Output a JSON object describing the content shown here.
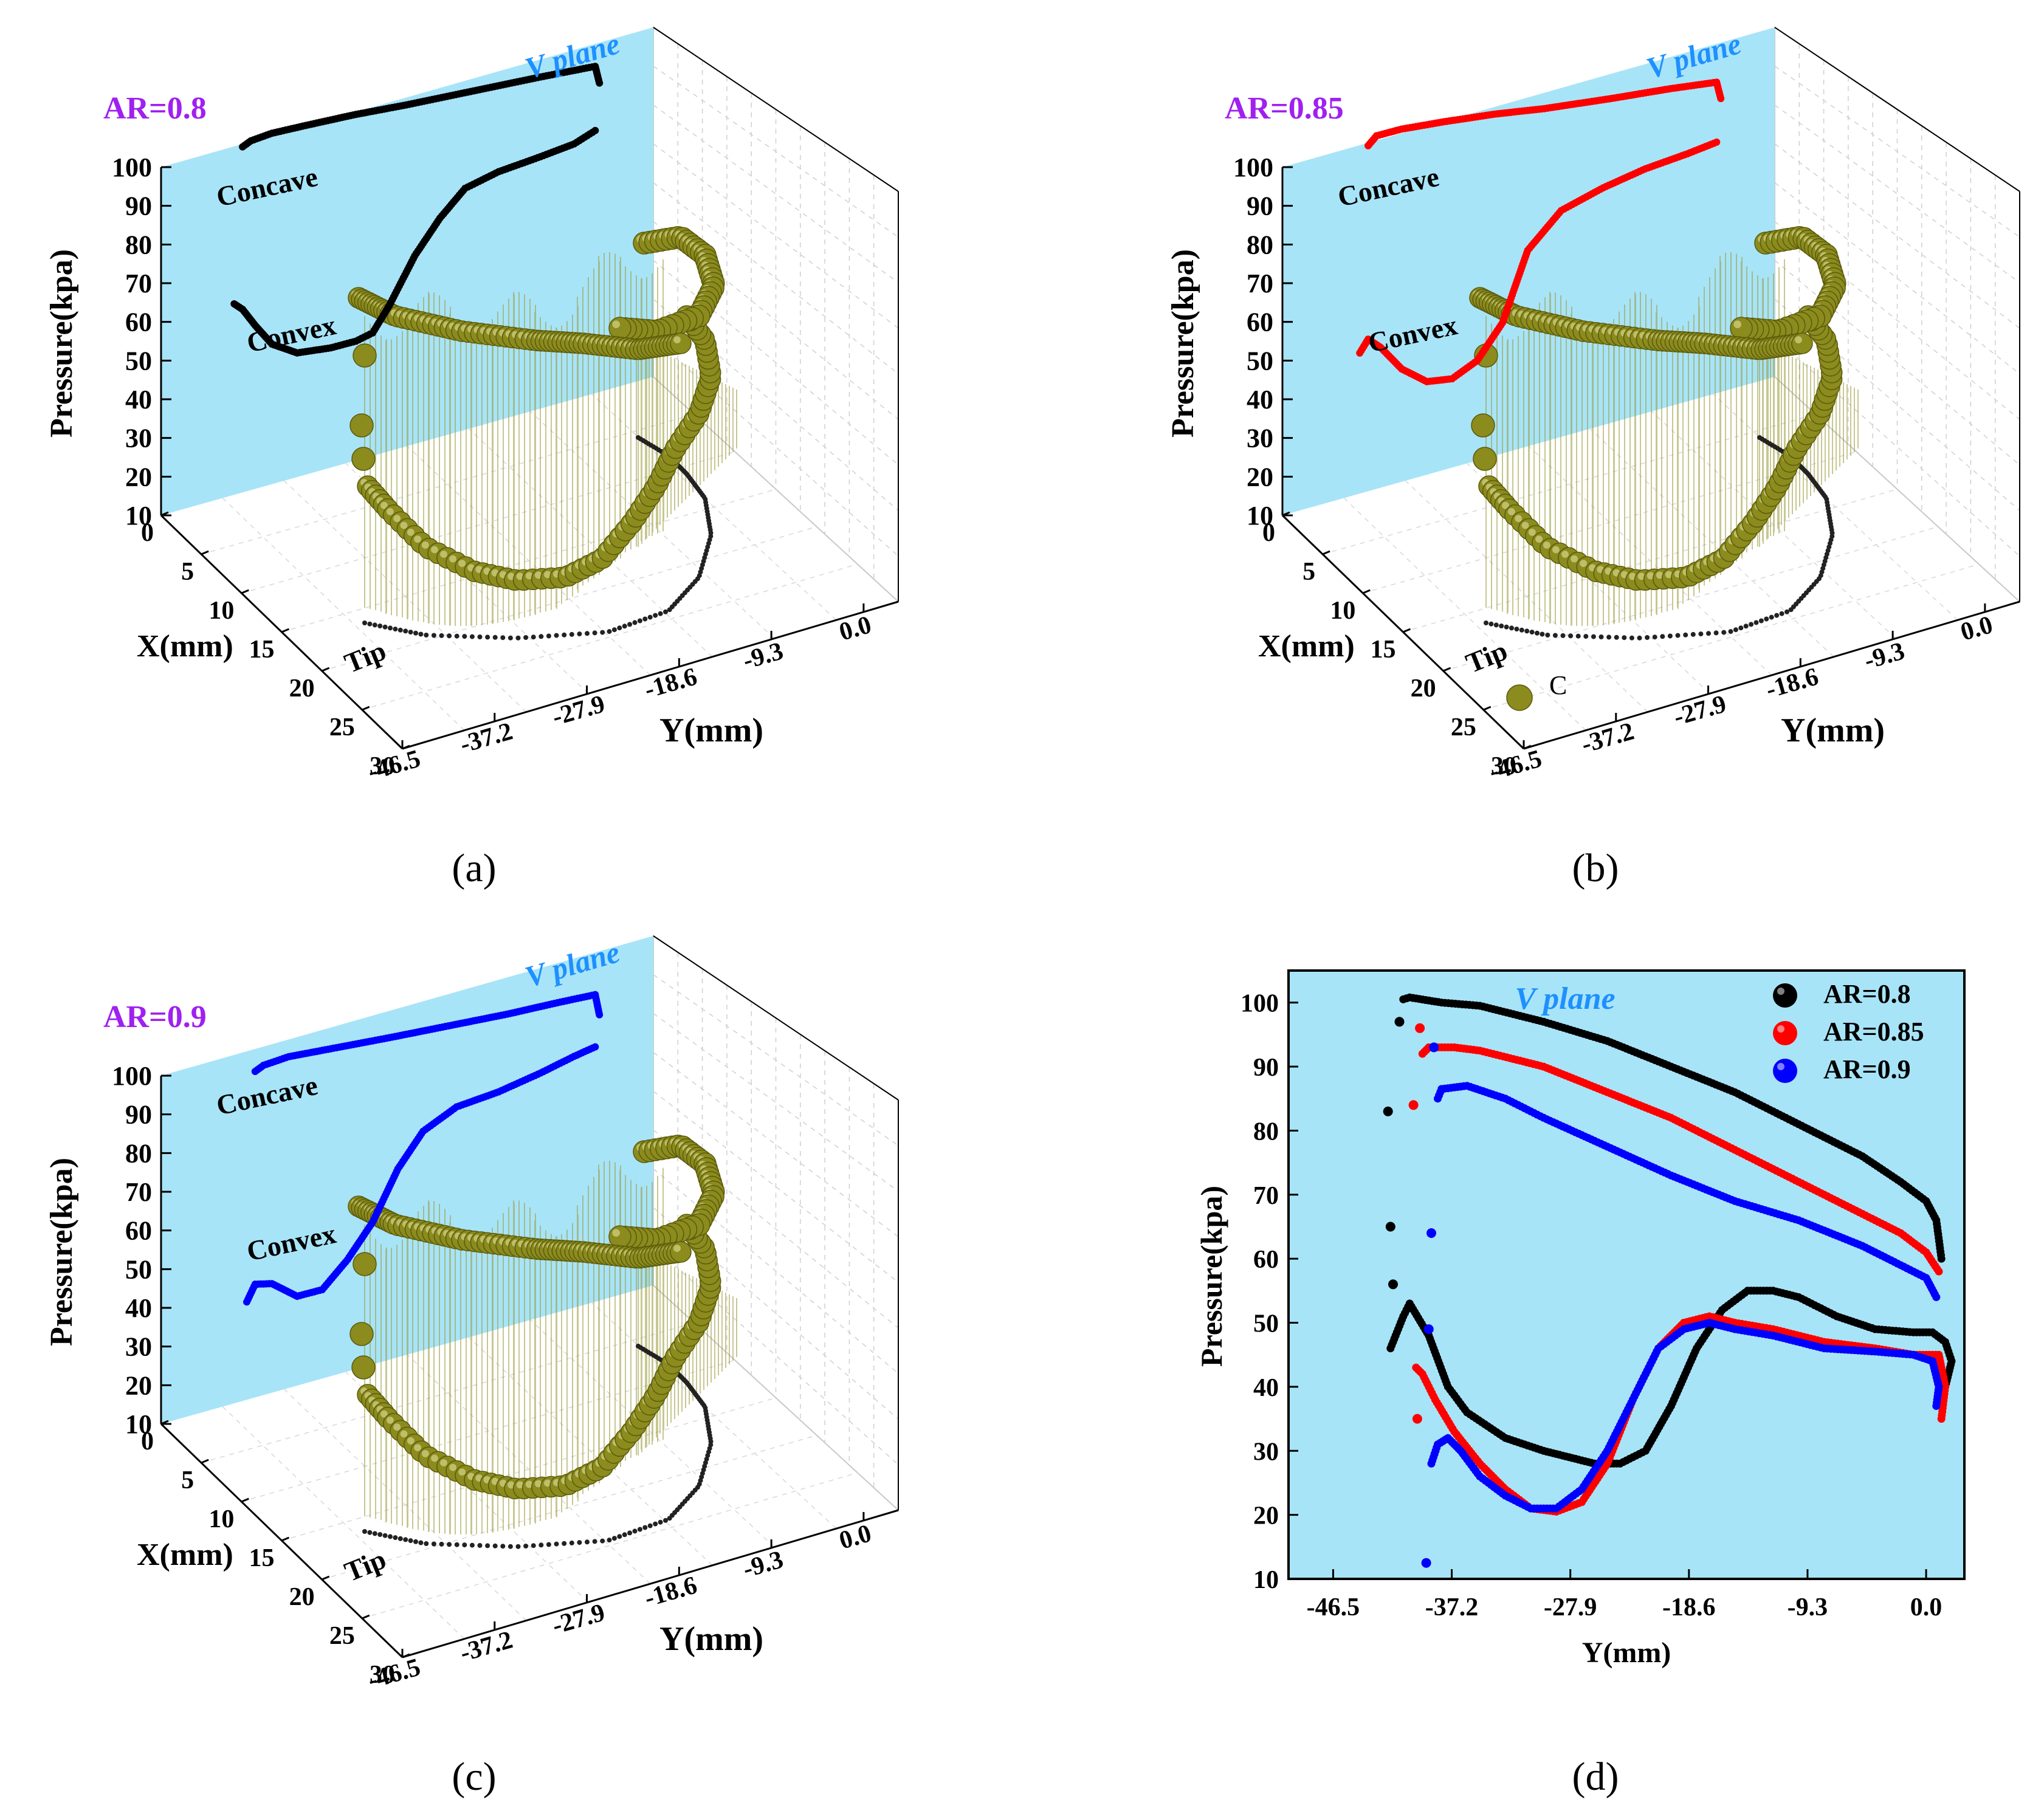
{
  "chart_data": [
    {
      "type": "scatter",
      "view": "3d",
      "panel_label": "(a)",
      "case_label": "AR=0.8",
      "plane_label": "V plane",
      "zlabel": "Pressure(kpa)",
      "xlabel": "X(mm)",
      "ylabel": "Y(mm)",
      "zticks": [
        10,
        20,
        30,
        40,
        50,
        60,
        70,
        80,
        90,
        100
      ],
      "xticks": [
        0,
        5,
        10,
        15,
        20,
        25,
        30
      ],
      "yticks": [
        -46.5,
        -37.2,
        -27.9,
        -18.6,
        -9.3,
        0.0
      ],
      "annotations": {
        "concave": "Concave",
        "convex": "Convex",
        "tip": "Tip"
      },
      "series_color": "#000000",
      "concave": {
        "y": [
          -41.5,
          -40.5,
          -38,
          -34,
          -28,
          -22,
          -14,
          -6,
          0.5,
          1.0
        ],
        "p": [
          100,
          101,
          101.5,
          101.2,
          100.6,
          99.6,
          98.6,
          97.6,
          96.6,
          92
        ]
      },
      "convex": {
        "y": [
          -42.5,
          -41.5,
          -40,
          -38,
          -35,
          -31,
          -28,
          -26,
          -24,
          -21,
          -18,
          -15,
          -11,
          -6,
          -2,
          0.5
        ],
        "p": [
          60,
          58,
          53,
          47,
          43,
          42,
          42,
          43,
          49,
          60,
          68,
          74,
          76,
          77,
          78,
          80
        ]
      }
    },
    {
      "type": "scatter",
      "view": "3d",
      "panel_label": "(b)",
      "case_label": "AR=0.85",
      "plane_label": "V plane",
      "zlabel": "Pressure(kpa)",
      "xlabel": "X(mm)",
      "ylabel": "Y(mm)",
      "zticks": [
        10,
        20,
        30,
        40,
        50,
        60,
        70,
        80,
        90,
        100
      ],
      "xticks": [
        0,
        5,
        10,
        15,
        20,
        25,
        30
      ],
      "yticks": [
        -46.5,
        -37.2,
        -27.9,
        -18.6,
        -9.3,
        0.0
      ],
      "annotations": {
        "concave": "Concave",
        "convex": "Convex",
        "tip": "Tip",
        "legend_symbol": "C"
      },
      "series_color": "#ff0000",
      "concave": {
        "y": [
          -41,
          -40,
          -37,
          -32,
          -26,
          -20,
          -12,
          -5,
          0.5,
          1.0
        ],
        "p": [
          100,
          102,
          102,
          101,
          99.5,
          97.5,
          95.5,
          94,
          92.5,
          88
        ]
      },
      "convex": {
        "y": [
          -42,
          -41,
          -39.5,
          -37,
          -34,
          -31,
          -28,
          -25,
          -22,
          -18,
          -13,
          -8,
          -3,
          0.5
        ],
        "p": [
          47,
          50,
          47,
          40,
          35,
          34,
          37,
          45,
          62,
          70,
          73,
          75,
          76,
          77
        ]
      }
    },
    {
      "type": "scatter",
      "view": "3d",
      "panel_label": "(c)",
      "case_label": "AR=0.9",
      "plane_label": "V plane",
      "zlabel": "Pressure(kpa)",
      "xlabel": "X(mm)",
      "ylabel": "Y(mm)",
      "zticks": [
        10,
        20,
        30,
        40,
        50,
        60,
        70,
        80,
        90,
        100
      ],
      "xticks": [
        0,
        5,
        10,
        15,
        20,
        25,
        30
      ],
      "yticks": [
        -46.5,
        -37.2,
        -27.9,
        -18.6,
        -9.3,
        0.0
      ],
      "annotations": {
        "concave": "Concave",
        "convex": "Convex",
        "tip": "Tip"
      },
      "series_color": "#0000ff",
      "concave": {
        "y": [
          -40,
          -39,
          -36,
          -30,
          -24,
          -17,
          -10,
          -4,
          0.5,
          1.0
        ],
        "p": [
          95,
          96,
          96.5,
          95.5,
          94.5,
          93.5,
          92.5,
          92,
          91.5,
          86
        ]
      },
      "convex": {
        "y": [
          -41,
          -40,
          -38,
          -35,
          -32,
          -29,
          -26,
          -23,
          -20,
          -16,
          -11,
          -6,
          -2,
          0.5
        ],
        "p": [
          36,
          40,
          39,
          34,
          34,
          40,
          48,
          60,
          68,
          72,
          73,
          75,
          77,
          78
        ]
      }
    },
    {
      "type": "scatter",
      "panel_label": "(d)",
      "plane_label": "V plane",
      "xlabel": "Y(mm)",
      "ylabel": "Pressure(kpa)",
      "xlim": [
        -50,
        3
      ],
      "ylim": [
        10,
        105
      ],
      "xticks": [
        -46.5,
        -37.2,
        -27.9,
        -18.6,
        -9.3,
        0.0
      ],
      "yticks": [
        10,
        20,
        30,
        40,
        50,
        60,
        70,
        80,
        90,
        100
      ],
      "legend_position": "top-right",
      "series": [
        {
          "name": "AR=0.8",
          "color": "#000000",
          "upper": {
            "x": [
              -41.0,
              -40.5,
              -38,
              -35,
              -30,
              -25,
              -20,
              -15,
              -10,
              -5,
              -2,
              0,
              0.8,
              1.2
            ],
            "y": [
              100.5,
              100.8,
              100,
              99.5,
              97,
              94,
              90,
              86,
              81,
              76,
              72,
              69,
              66,
              60
            ]
          },
          "lower": {
            "x": [
              -42,
              -41,
              -40.5,
              -39,
              -37.5,
              -36,
              -33,
              -30,
              -28,
              -26,
              -24,
              -22,
              -20,
              -18,
              -16,
              -14,
              -12,
              -10,
              -7,
              -4,
              -1,
              0.5,
              1.5,
              2.0,
              1.5
            ],
            "y": [
              46,
              51,
              53,
              48,
              40,
              36,
              32,
              30,
              29,
              28,
              28,
              30,
              37,
              46,
              52,
              55,
              55,
              54,
              51,
              49,
              48.5,
              48.5,
              47,
              44,
              40
            ]
          },
          "outliers": {
            "x": [
              -42.2,
              -42.0,
              -41.8,
              -41.3
            ],
            "y": [
              83,
              65,
              56,
              97
            ]
          }
        },
        {
          "name": "AR=0.85",
          "color": "#ff0000",
          "upper": {
            "x": [
              -39.5,
              -39,
              -37,
              -35,
              -30,
              -25,
              -20,
              -15,
              -10,
              -5,
              -2,
              0,
              1.0
            ],
            "y": [
              92,
              93,
              93,
              92.5,
              90,
              86,
              82,
              77,
              72,
              67,
              64,
              61,
              58
            ]
          },
          "lower": {
            "x": [
              -40,
              -39.5,
              -38.5,
              -37,
              -35,
              -33,
              -31,
              -29,
              -27,
              -25,
              -23,
              -21,
              -19,
              -17,
              -15,
              -12,
              -8,
              -4,
              -1,
              1,
              1.5,
              1.2
            ],
            "y": [
              43,
              42,
              38,
              33,
              28,
              24,
              21,
              20.5,
              22,
              28,
              38,
              46,
              50,
              51,
              50,
              49,
              47,
              46,
              45,
              45,
              40,
              35
            ]
          },
          "outliers": {
            "x": [
              -40.2,
              -39.9,
              -39.7
            ],
            "y": [
              84,
              35,
              96
            ]
          }
        },
        {
          "name": "AR=0.9",
          "color": "#0000ff",
          "upper": {
            "x": [
              -38.3,
              -38,
              -36,
              -33,
              -30,
              -25,
              -20,
              -15,
              -10,
              -5,
              -2,
              0,
              0.8
            ],
            "y": [
              85,
              86.5,
              87,
              85,
              82,
              77.5,
              73,
              69,
              66,
              62,
              59,
              57,
              54
            ]
          },
          "lower": {
            "x": [
              -38.8,
              -38.3,
              -37.5,
              -36.5,
              -35,
              -33,
              -31,
              -29,
              -27,
              -25,
              -23,
              -21,
              -19,
              -17,
              -15,
              -12,
              -8,
              -4,
              -1,
              0.5,
              1.0,
              0.8
            ],
            "y": [
              28,
              31,
              32,
              30,
              26,
              23,
              21,
              21,
              24,
              30,
              38,
              46,
              49,
              50,
              49,
              48,
              46,
              45.5,
              45,
              44,
              40,
              37
            ]
          },
          "outliers": {
            "x": [
              -39.2,
              -39.0,
              -38.8,
              -38.6
            ],
            "y": [
              12.5,
              49,
              64,
              93
            ]
          }
        }
      ]
    }
  ]
}
